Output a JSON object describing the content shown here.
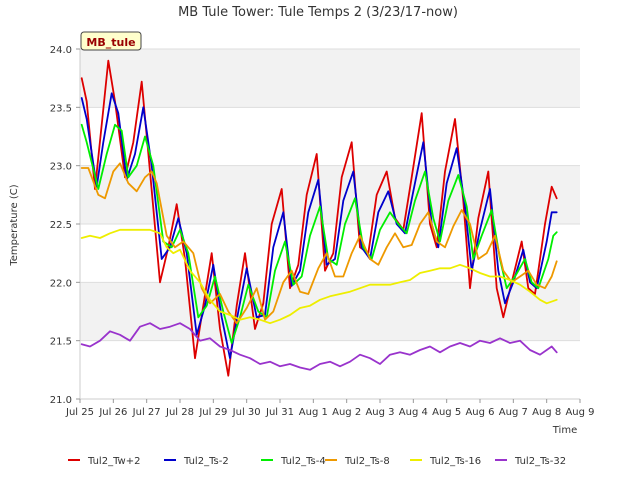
{
  "chart_data": {
    "type": "line",
    "title": "MB Tule Tower: Tule Temps 2 (3/23/17-now)",
    "xlabel": "Time",
    "ylabel": "Temperature (C)",
    "station_label": "MB_tule",
    "xlim": [
      0,
      15
    ],
    "ylim": [
      21.0,
      24.0
    ],
    "grid": true,
    "legend_position": "bottom",
    "x_ticks": [
      {
        "v": 0,
        "label": "Jul 25"
      },
      {
        "v": 1,
        "label": "Jul 26"
      },
      {
        "v": 2,
        "label": "Jul 27"
      },
      {
        "v": 3,
        "label": "Jul 28"
      },
      {
        "v": 4,
        "label": "Jul 29"
      },
      {
        "v": 5,
        "label": "Jul 30"
      },
      {
        "v": 6,
        "label": "Jul 31"
      },
      {
        "v": 7,
        "label": "Aug 1"
      },
      {
        "v": 8,
        "label": "Aug 2"
      },
      {
        "v": 9,
        "label": "Aug 3"
      },
      {
        "v": 10,
        "label": "Aug 4"
      },
      {
        "v": 11,
        "label": "Aug 5"
      },
      {
        "v": 12,
        "label": "Aug 6"
      },
      {
        "v": 13,
        "label": "Aug 7"
      },
      {
        "v": 14,
        "label": "Aug 8"
      },
      {
        "v": 15,
        "label": "Aug 9"
      }
    ],
    "y_ticks": [
      {
        "v": 21.0,
        "label": "21.0"
      },
      {
        "v": 21.5,
        "label": "21.5"
      },
      {
        "v": 22.0,
        "label": "22.0"
      },
      {
        "v": 22.5,
        "label": "22.5"
      },
      {
        "v": 23.0,
        "label": "23.0"
      },
      {
        "v": 23.5,
        "label": "23.5"
      },
      {
        "v": 24.0,
        "label": "24.0"
      }
    ],
    "series": [
      {
        "name": "Tul2_Tw+2",
        "color": "#dd0000",
        "x": [
          0.05,
          0.2,
          0.45,
          0.65,
          0.85,
          1.05,
          1.35,
          1.6,
          1.85,
          2.1,
          2.4,
          2.65,
          2.9,
          3.15,
          3.45,
          3.7,
          3.95,
          4.2,
          4.45,
          4.7,
          4.95,
          5.25,
          5.5,
          5.75,
          6.05,
          6.3,
          6.55,
          6.8,
          7.1,
          7.35,
          7.6,
          7.85,
          8.15,
          8.4,
          8.65,
          8.9,
          9.2,
          9.45,
          9.7,
          9.95,
          10.25,
          10.5,
          10.7,
          10.95,
          11.25,
          11.5,
          11.7,
          11.95,
          12.25,
          12.5,
          12.7,
          12.95,
          13.25,
          13.45,
          13.65,
          13.95,
          14.15,
          14.3
        ],
        "y": [
          23.75,
          23.55,
          22.8,
          23.35,
          23.9,
          23.55,
          22.9,
          23.2,
          23.72,
          22.95,
          22.0,
          22.3,
          22.67,
          22.2,
          21.35,
          21.8,
          22.25,
          21.6,
          21.2,
          21.8,
          22.25,
          21.6,
          21.82,
          22.5,
          22.8,
          21.95,
          22.15,
          22.75,
          23.1,
          22.1,
          22.25,
          22.9,
          23.2,
          22.3,
          22.25,
          22.75,
          22.95,
          22.55,
          22.45,
          22.9,
          23.45,
          22.5,
          22.3,
          22.95,
          23.4,
          22.7,
          21.95,
          22.55,
          22.95,
          21.95,
          21.7,
          22.0,
          22.35,
          21.95,
          21.9,
          22.5,
          22.82,
          22.72
        ]
      },
      {
        "name": "Tul2_Ts-2",
        "color": "#0000cc",
        "x": [
          0.05,
          0.2,
          0.5,
          0.7,
          0.95,
          1.15,
          1.4,
          1.65,
          1.9,
          2.15,
          2.45,
          2.7,
          2.95,
          3.2,
          3.5,
          3.75,
          4.0,
          4.25,
          4.5,
          4.75,
          5.0,
          5.3,
          5.55,
          5.8,
          6.1,
          6.35,
          6.6,
          6.85,
          7.15,
          7.4,
          7.65,
          7.9,
          8.2,
          8.45,
          8.7,
          8.95,
          9.25,
          9.5,
          9.75,
          10.0,
          10.3,
          10.55,
          10.75,
          11.0,
          11.3,
          11.55,
          11.75,
          12.0,
          12.3,
          12.55,
          12.75,
          13.0,
          13.3,
          13.5,
          13.7,
          14.0,
          14.15,
          14.3
        ],
        "y": [
          23.58,
          23.4,
          22.82,
          23.2,
          23.62,
          23.45,
          22.88,
          23.1,
          23.5,
          23.0,
          22.2,
          22.3,
          22.55,
          22.25,
          21.55,
          21.8,
          22.15,
          21.7,
          21.35,
          21.75,
          22.12,
          21.7,
          21.72,
          22.3,
          22.6,
          21.97,
          22.1,
          22.6,
          22.88,
          22.15,
          22.2,
          22.7,
          22.95,
          22.3,
          22.2,
          22.6,
          22.78,
          22.5,
          22.42,
          22.78,
          23.2,
          22.5,
          22.3,
          22.85,
          23.15,
          22.65,
          22.1,
          22.45,
          22.8,
          22.1,
          21.82,
          22.0,
          22.28,
          22.0,
          21.95,
          22.35,
          22.6,
          22.6
        ]
      },
      {
        "name": "Tul2_Ts-4",
        "color": "#00ee00",
        "x": [
          0.05,
          0.2,
          0.55,
          0.8,
          1.05,
          1.25,
          1.45,
          1.7,
          1.95,
          2.2,
          2.5,
          2.75,
          3.0,
          3.25,
          3.55,
          3.8,
          4.05,
          4.3,
          4.55,
          4.8,
          5.05,
          5.35,
          5.6,
          5.85,
          6.15,
          6.4,
          6.65,
          6.9,
          7.2,
          7.45,
          7.7,
          7.95,
          8.25,
          8.5,
          8.75,
          9.0,
          9.3,
          9.55,
          9.8,
          10.05,
          10.35,
          10.6,
          10.8,
          11.05,
          11.35,
          11.6,
          11.8,
          12.05,
          12.35,
          12.6,
          12.8,
          13.05,
          13.35,
          13.55,
          13.75,
          14.05,
          14.2,
          14.3
        ],
        "y": [
          23.35,
          23.2,
          22.8,
          23.1,
          23.35,
          23.3,
          22.9,
          23.0,
          23.25,
          23.0,
          22.35,
          22.3,
          22.45,
          22.25,
          21.7,
          21.8,
          22.05,
          21.75,
          21.48,
          21.7,
          21.98,
          21.75,
          21.7,
          22.1,
          22.35,
          21.98,
          22.05,
          22.4,
          22.65,
          22.2,
          22.15,
          22.5,
          22.72,
          22.3,
          22.2,
          22.45,
          22.6,
          22.5,
          22.42,
          22.7,
          22.95,
          22.55,
          22.35,
          22.7,
          22.92,
          22.65,
          22.2,
          22.4,
          22.62,
          22.2,
          21.95,
          22.05,
          22.2,
          22.0,
          21.95,
          22.2,
          22.4,
          22.43
        ]
      },
      {
        "name": "Tul2_Ts-8",
        "color": "#ee9900",
        "x": [
          0.05,
          0.25,
          0.55,
          0.75,
          1.0,
          1.2,
          1.45,
          1.7,
          1.95,
          2.15,
          2.3,
          2.6,
          2.85,
          3.1,
          3.4,
          3.65,
          3.9,
          4.2,
          4.45,
          4.7,
          5.0,
          5.3,
          5.55,
          5.8,
          6.1,
          6.35,
          6.6,
          6.85,
          7.15,
          7.4,
          7.65,
          7.9,
          8.15,
          8.4,
          8.7,
          8.95,
          9.2,
          9.45,
          9.7,
          9.95,
          10.2,
          10.45,
          10.7,
          10.95,
          11.2,
          11.45,
          11.7,
          11.95,
          12.2,
          12.45,
          12.7,
          12.95,
          13.2,
          13.45,
          13.7,
          13.95,
          14.15,
          14.3
        ],
        "y": [
          22.98,
          22.98,
          22.75,
          22.72,
          22.95,
          23.02,
          22.85,
          22.78,
          22.9,
          22.95,
          22.85,
          22.4,
          22.3,
          22.35,
          22.25,
          21.95,
          21.82,
          21.9,
          21.75,
          21.65,
          21.78,
          21.95,
          21.68,
          21.75,
          22.0,
          22.1,
          21.92,
          21.9,
          22.12,
          22.25,
          22.05,
          22.05,
          22.25,
          22.4,
          22.2,
          22.15,
          22.3,
          22.42,
          22.3,
          22.32,
          22.5,
          22.6,
          22.35,
          22.3,
          22.48,
          22.62,
          22.5,
          22.2,
          22.25,
          22.4,
          22.1,
          22.0,
          22.05,
          22.1,
          21.98,
          21.95,
          22.05,
          22.18
        ]
      },
      {
        "name": "Tul2_Ts-16",
        "color": "#eeee00",
        "x": [
          0.05,
          0.3,
          0.6,
          0.9,
          1.2,
          1.5,
          1.8,
          2.1,
          2.4,
          2.6,
          2.8,
          3.0,
          3.3,
          3.6,
          3.9,
          4.2,
          4.5,
          4.8,
          5.1,
          5.4,
          5.7,
          6.0,
          6.3,
          6.6,
          6.9,
          7.2,
          7.5,
          7.8,
          8.1,
          8.4,
          8.7,
          9.0,
          9.3,
          9.6,
          9.9,
          10.2,
          10.5,
          10.8,
          11.1,
          11.4,
          11.7,
          12.0,
          12.3,
          12.6,
          12.9,
          13.2,
          13.5,
          13.8,
          14.0,
          14.3
        ],
        "y": [
          22.38,
          22.4,
          22.38,
          22.42,
          22.45,
          22.45,
          22.45,
          22.45,
          22.42,
          22.3,
          22.25,
          22.28,
          22.1,
          22.0,
          21.85,
          21.75,
          21.72,
          21.68,
          21.7,
          21.68,
          21.65,
          21.68,
          21.72,
          21.78,
          21.8,
          21.85,
          21.88,
          21.9,
          21.92,
          21.95,
          21.98,
          21.98,
          21.98,
          22.0,
          22.02,
          22.08,
          22.1,
          22.12,
          22.12,
          22.15,
          22.12,
          22.08,
          22.05,
          22.05,
          22.02,
          21.98,
          21.92,
          21.85,
          21.82,
          21.85
        ]
      },
      {
        "name": "Tul2_Ts-32",
        "color": "#9933cc",
        "x": [
          0.05,
          0.3,
          0.6,
          0.9,
          1.2,
          1.5,
          1.8,
          2.1,
          2.4,
          2.7,
          3.0,
          3.3,
          3.6,
          3.9,
          4.2,
          4.5,
          4.8,
          5.1,
          5.4,
          5.7,
          6.0,
          6.3,
          6.6,
          6.9,
          7.2,
          7.5,
          7.8,
          8.1,
          8.4,
          8.7,
          9.0,
          9.3,
          9.6,
          9.9,
          10.2,
          10.5,
          10.8,
          11.1,
          11.4,
          11.7,
          12.0,
          12.3,
          12.6,
          12.9,
          13.2,
          13.5,
          13.8,
          14.0,
          14.15,
          14.3
        ],
        "y": [
          21.47,
          21.45,
          21.5,
          21.58,
          21.55,
          21.5,
          21.62,
          21.65,
          21.6,
          21.62,
          21.65,
          21.6,
          21.5,
          21.52,
          21.45,
          21.42,
          21.38,
          21.35,
          21.3,
          21.32,
          21.28,
          21.3,
          21.27,
          21.25,
          21.3,
          21.32,
          21.28,
          21.32,
          21.38,
          21.35,
          21.3,
          21.38,
          21.4,
          21.38,
          21.42,
          21.45,
          21.4,
          21.45,
          21.48,
          21.45,
          21.5,
          21.48,
          21.52,
          21.48,
          21.5,
          21.42,
          21.38,
          21.42,
          21.45,
          21.4
        ]
      }
    ]
  }
}
